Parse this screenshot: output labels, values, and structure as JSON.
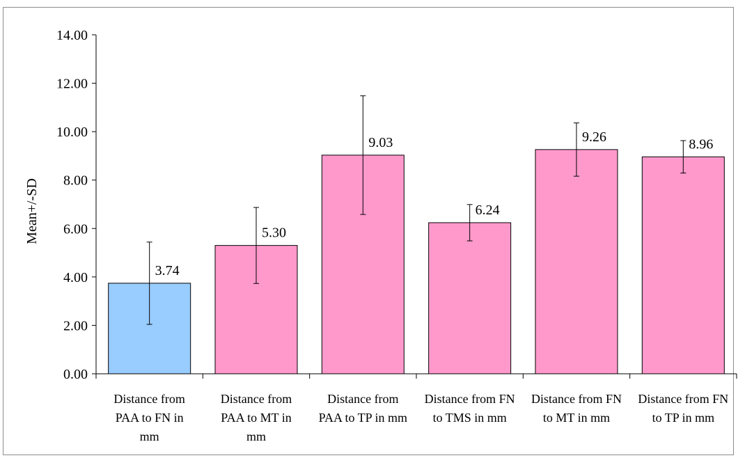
{
  "chart_data": {
    "type": "bar",
    "title": "",
    "xlabel": "",
    "ylabel": "Mean+/-SD",
    "ylim": [
      0,
      14
    ],
    "yticks": [
      "0.00",
      "2.00",
      "4.00",
      "6.00",
      "8.00",
      "10.00",
      "12.00",
      "14.00"
    ],
    "grid": false,
    "legend": "none",
    "categories": [
      [
        "Distance from",
        "PAA to FN  in",
        "mm"
      ],
      [
        "Distance from",
        "PAA to MT in",
        "mm"
      ],
      [
        "Distance from",
        "PAA to TP in mm"
      ],
      [
        "Distance from FN",
        "to TMS in mm"
      ],
      [
        "Distance from FN",
        "to MT in mm"
      ],
      [
        "Distance from FN",
        "to TP in mm"
      ]
    ],
    "values": [
      3.74,
      5.3,
      9.03,
      6.24,
      9.26,
      8.96
    ],
    "value_labels": [
      "3.74",
      "5.30",
      "9.03",
      "6.24",
      "9.26",
      "8.96"
    ],
    "sd": [
      1.7,
      1.57,
      2.45,
      0.75,
      1.1,
      0.67
    ],
    "bar_colors": [
      "#99ccff",
      "#ff99cc",
      "#ff99cc",
      "#ff99cc",
      "#ff99cc",
      "#ff99cc"
    ]
  }
}
